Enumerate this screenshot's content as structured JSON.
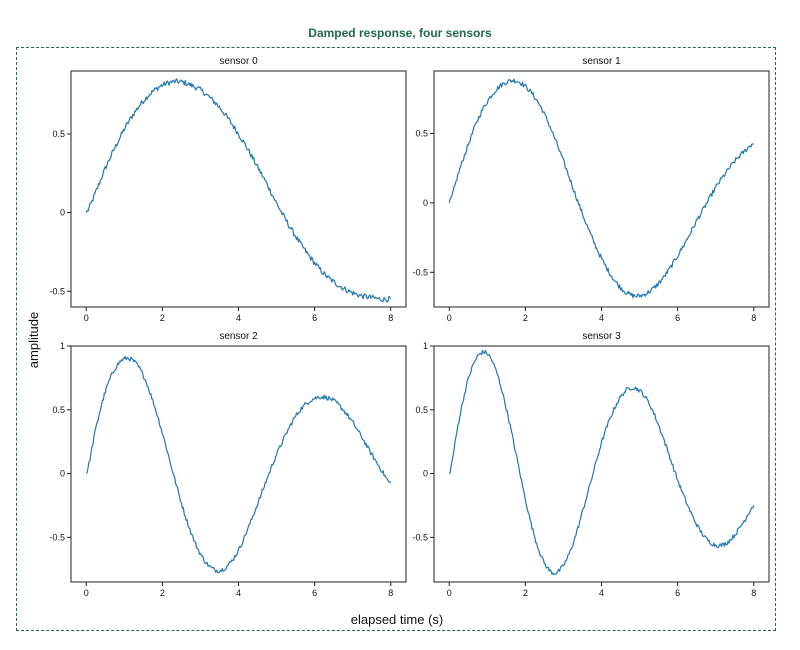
{
  "figure": {
    "title": "Damped response, four sensors",
    "xlabel": "elapsed time (s)",
    "ylabel": "amplitude",
    "frame_color": "#1f6b45",
    "line_color": "#1f77b4"
  },
  "chart_data": [
    {
      "type": "line",
      "title": "sensor 0",
      "xlim": [
        -0.4,
        8.4
      ],
      "ylim": [
        -0.6,
        0.9
      ],
      "xticks": [
        0,
        2,
        4,
        6,
        8
      ],
      "yticks": [
        -0.5,
        0,
        0.5
      ],
      "ytick_labels": [
        "-0.5",
        "0",
        "0.5"
      ],
      "x": [
        0,
        0.25,
        0.5,
        0.75,
        1,
        1.25,
        1.5,
        1.75,
        2,
        2.25,
        2.5,
        2.75,
        3,
        3.25,
        3.5,
        3.75,
        4,
        4.25,
        4.5,
        4.75,
        5,
        5.25,
        5.5,
        5.75,
        6,
        6.25,
        6.5,
        6.75,
        7,
        7.25,
        7.5,
        7.75,
        8
      ],
      "series": [
        {
          "values": [
            0,
            0.13,
            0.28,
            0.41,
            0.53,
            0.63,
            0.71,
            0.77,
            0.81,
            0.83,
            0.83,
            0.81,
            0.78,
            0.73,
            0.67,
            0.59,
            0.5,
            0.4,
            0.29,
            0.18,
            0.06,
            -0.05,
            -0.15,
            -0.24,
            -0.32,
            -0.39,
            -0.44,
            -0.48,
            -0.51,
            -0.53,
            -0.54,
            -0.55,
            -0.55
          ]
        }
      ]
    },
    {
      "type": "line",
      "title": "sensor 1",
      "xlim": [
        -0.4,
        8.4
      ],
      "ylim": [
        -0.75,
        0.95
      ],
      "xticks": [
        0,
        2,
        4,
        6,
        8
      ],
      "yticks": [
        -0.5,
        0,
        0.5
      ],
      "ytick_labels": [
        "-0.5",
        "0",
        "0.5"
      ],
      "x": [
        0,
        0.25,
        0.5,
        0.75,
        1,
        1.25,
        1.5,
        1.75,
        2,
        2.25,
        2.5,
        2.75,
        3,
        3.25,
        3.5,
        3.75,
        4,
        4.25,
        4.5,
        4.75,
        5,
        5.25,
        5.5,
        5.75,
        6,
        6.25,
        6.5,
        6.75,
        7,
        7.25,
        7.5,
        7.75,
        8
      ],
      "series": [
        {
          "values": [
            0,
            0.22,
            0.42,
            0.6,
            0.73,
            0.82,
            0.87,
            0.88,
            0.84,
            0.76,
            0.64,
            0.48,
            0.3,
            0.11,
            -0.08,
            -0.25,
            -0.4,
            -0.52,
            -0.61,
            -0.66,
            -0.67,
            -0.64,
            -0.58,
            -0.49,
            -0.38,
            -0.26,
            -0.13,
            -0.01,
            0.11,
            0.21,
            0.3,
            0.37,
            0.43
          ]
        }
      ]
    },
    {
      "type": "line",
      "title": "sensor 2",
      "xlim": [
        -0.4,
        8.4
      ],
      "ylim": [
        -0.85,
        1.0
      ],
      "xticks": [
        0,
        2,
        4,
        6,
        8
      ],
      "yticks": [
        -0.5,
        0,
        0.5,
        1
      ],
      "ytick_labels": [
        "-0.5",
        "0",
        "0.5",
        "1"
      ],
      "x": [
        0,
        0.25,
        0.5,
        0.75,
        1,
        1.25,
        1.5,
        1.75,
        2,
        2.25,
        2.5,
        2.75,
        3,
        3.25,
        3.5,
        3.75,
        4,
        4.25,
        4.5,
        4.75,
        5,
        5.25,
        5.5,
        5.75,
        6,
        6.25,
        6.5,
        6.75,
        7,
        7.25,
        7.5,
        7.75,
        8
      ],
      "series": [
        {
          "values": [
            0,
            0.35,
            0.64,
            0.82,
            0.9,
            0.88,
            0.77,
            0.57,
            0.32,
            0.04,
            -0.23,
            -0.46,
            -0.63,
            -0.73,
            -0.76,
            -0.71,
            -0.6,
            -0.43,
            -0.24,
            -0.04,
            0.15,
            0.31,
            0.45,
            0.54,
            0.59,
            0.6,
            0.57,
            0.5,
            0.4,
            0.28,
            0.15,
            0.03,
            -0.08
          ]
        }
      ]
    },
    {
      "type": "line",
      "title": "sensor 3",
      "xlim": [
        -0.4,
        8.4
      ],
      "ylim": [
        -0.85,
        1.0
      ],
      "xticks": [
        0,
        2,
        4,
        6,
        8
      ],
      "yticks": [
        -0.5,
        0,
        0.5,
        1
      ],
      "ytick_labels": [
        "-0.5",
        "0",
        "0.5",
        "1"
      ],
      "x": [
        0,
        0.25,
        0.5,
        0.75,
        1,
        1.25,
        1.5,
        1.75,
        2,
        2.25,
        2.5,
        2.75,
        3,
        3.25,
        3.5,
        3.75,
        4,
        4.25,
        4.5,
        4.75,
        5,
        5.25,
        5.5,
        5.75,
        6,
        6.25,
        6.5,
        6.75,
        7,
        7.25,
        7.5,
        7.75,
        8
      ],
      "series": [
        {
          "values": [
            0,
            0.41,
            0.74,
            0.92,
            0.94,
            0.79,
            0.51,
            0.16,
            -0.2,
            -0.5,
            -0.7,
            -0.78,
            -0.72,
            -0.55,
            -0.3,
            -0.03,
            0.24,
            0.45,
            0.6,
            0.67,
            0.65,
            0.55,
            0.38,
            0.17,
            -0.05,
            -0.24,
            -0.4,
            -0.51,
            -0.56,
            -0.55,
            -0.48,
            -0.37,
            -0.25
          ]
        }
      ]
    }
  ]
}
